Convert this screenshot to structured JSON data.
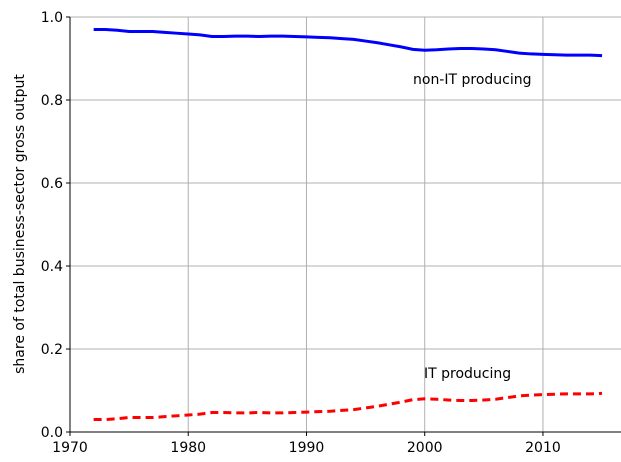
{
  "chart_data": {
    "type": "line",
    "y_label": "share of total business-sector gross output",
    "x": [
      1972,
      1973,
      1974,
      1975,
      1976,
      1977,
      1978,
      1979,
      1980,
      1981,
      1982,
      1983,
      1984,
      1985,
      1986,
      1987,
      1988,
      1989,
      1990,
      1991,
      1992,
      1993,
      1994,
      1995,
      1996,
      1997,
      1998,
      1999,
      2000,
      2001,
      2002,
      2003,
      2004,
      2005,
      2006,
      2007,
      2008,
      2009,
      2010,
      2011,
      2012,
      2013,
      2014,
      2015
    ],
    "series": [
      {
        "name": "non-IT producing",
        "color": "#0000ff",
        "dash": "solid",
        "values": [
          0.97,
          0.97,
          0.968,
          0.965,
          0.965,
          0.965,
          0.963,
          0.961,
          0.959,
          0.957,
          0.953,
          0.953,
          0.954,
          0.954,
          0.953,
          0.954,
          0.954,
          0.953,
          0.952,
          0.951,
          0.95,
          0.948,
          0.946,
          0.942,
          0.938,
          0.933,
          0.928,
          0.922,
          0.92,
          0.921,
          0.923,
          0.924,
          0.924,
          0.923,
          0.921,
          0.917,
          0.913,
          0.911,
          0.91,
          0.909,
          0.908,
          0.908,
          0.908,
          0.907
        ]
      },
      {
        "name": "IT producing",
        "color": "#ff0000",
        "dash": "dashed",
        "values": [
          0.03,
          0.03,
          0.032,
          0.035,
          0.035,
          0.035,
          0.037,
          0.039,
          0.041,
          0.043,
          0.047,
          0.047,
          0.046,
          0.046,
          0.047,
          0.046,
          0.046,
          0.047,
          0.048,
          0.049,
          0.05,
          0.052,
          0.054,
          0.058,
          0.062,
          0.067,
          0.072,
          0.078,
          0.08,
          0.079,
          0.077,
          0.076,
          0.076,
          0.077,
          0.079,
          0.083,
          0.087,
          0.089,
          0.09,
          0.091,
          0.092,
          0.092,
          0.092,
          0.093
        ]
      }
    ],
    "xlim": [
      1970,
      2016.6
    ],
    "xticks": [
      1970,
      1980,
      1990,
      2000,
      2010
    ],
    "ylim": [
      0,
      1
    ],
    "yticks": [
      {
        "value": 0,
        "label": "0.0"
      },
      0.2,
      0.4,
      0.6,
      0.8,
      {
        "value": 1,
        "label": "1.0"
      }
    ],
    "grid": true
  }
}
